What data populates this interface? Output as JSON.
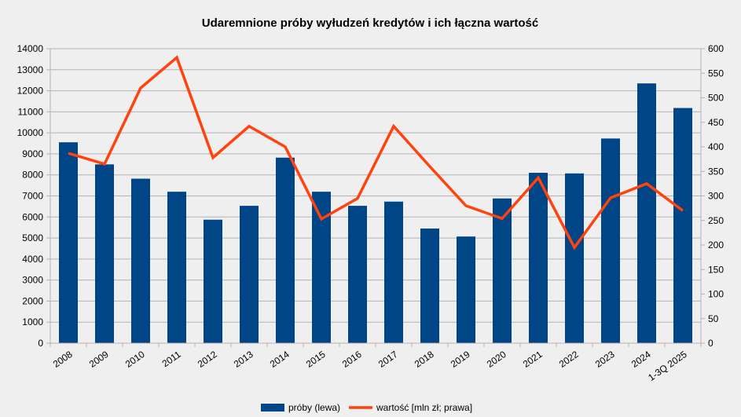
{
  "chart_data": {
    "type": "bar",
    "title": "Udaremnione próby wyłudzeń kredytów i ich łączna wartość",
    "xlabel": "",
    "ylabel": "",
    "y2label": "",
    "categories": [
      "2008",
      "2009",
      "2010",
      "2011",
      "2012",
      "2013",
      "2014",
      "2015",
      "2016",
      "2017",
      "2018",
      "2019",
      "2020",
      "2021",
      "2022",
      "2023",
      "2024",
      "1-3Q 2025"
    ],
    "ylim": [
      0,
      14000
    ],
    "y2lim": [
      0,
      600
    ],
    "yticks": [
      0,
      1000,
      2000,
      3000,
      4000,
      5000,
      6000,
      7000,
      8000,
      9000,
      10000,
      11000,
      12000,
      13000,
      14000
    ],
    "y2ticks": [
      0,
      50,
      100,
      150,
      200,
      250,
      300,
      350,
      400,
      450,
      500,
      550,
      600
    ],
    "grid": true,
    "legend_position": "bottom",
    "series": [
      {
        "name": "próby (lewa)",
        "type": "bar",
        "axis": "left",
        "color": "#004586",
        "values": [
          9550,
          8500,
          7820,
          7200,
          5870,
          6530,
          8820,
          7200,
          6530,
          6730,
          5450,
          5070,
          6880,
          8100,
          8070,
          9730,
          12350,
          11180
        ]
      },
      {
        "name": "wartość [mln zł; prawa]",
        "type": "line",
        "axis": "right",
        "color": "#ff420e",
        "values": [
          387,
          365,
          520,
          582,
          378,
          442,
          400,
          253,
          295,
          442,
          360,
          280,
          254,
          337,
          195,
          296,
          325,
          270
        ]
      }
    ]
  }
}
